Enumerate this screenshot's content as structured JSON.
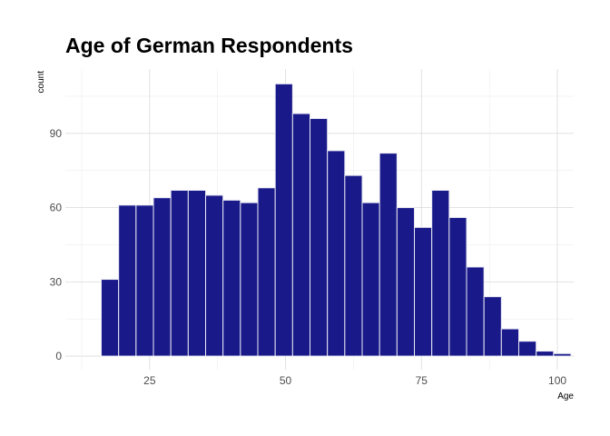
{
  "chart_data": {
    "type": "bar",
    "title": "Age of German Respondents",
    "xlabel": "Age",
    "ylabel": "count",
    "bar_color": "#191989",
    "bin_width": 3.2,
    "bins": [
      {
        "x": 17.7,
        "count": 31
      },
      {
        "x": 20.9,
        "count": 61
      },
      {
        "x": 24.1,
        "count": 61
      },
      {
        "x": 27.3,
        "count": 64
      },
      {
        "x": 30.5,
        "count": 67
      },
      {
        "x": 33.7,
        "count": 67
      },
      {
        "x": 36.9,
        "count": 65
      },
      {
        "x": 40.1,
        "count": 63
      },
      {
        "x": 43.3,
        "count": 62
      },
      {
        "x": 46.5,
        "count": 68
      },
      {
        "x": 49.7,
        "count": 110
      },
      {
        "x": 52.9,
        "count": 98
      },
      {
        "x": 56.1,
        "count": 96
      },
      {
        "x": 59.3,
        "count": 83
      },
      {
        "x": 62.5,
        "count": 73
      },
      {
        "x": 65.7,
        "count": 62
      },
      {
        "x": 68.9,
        "count": 82
      },
      {
        "x": 72.1,
        "count": 60
      },
      {
        "x": 75.3,
        "count": 52
      },
      {
        "x": 78.5,
        "count": 67
      },
      {
        "x": 81.7,
        "count": 56
      },
      {
        "x": 84.9,
        "count": 36
      },
      {
        "x": 88.1,
        "count": 24
      },
      {
        "x": 91.3,
        "count": 11
      },
      {
        "x": 94.5,
        "count": 6
      },
      {
        "x": 97.7,
        "count": 2
      },
      {
        "x": 100.9,
        "count": 1
      }
    ],
    "xlim": [
      9.5,
      103
    ],
    "ylim": [
      -5.5,
      116
    ],
    "x_ticks": [
      25,
      50,
      75,
      100
    ],
    "y_ticks": [
      0,
      30,
      60,
      90
    ],
    "x_minor": [
      12.5,
      37.5,
      62.5,
      87.5
    ],
    "y_minor": [
      15,
      45,
      75,
      105
    ],
    "grid": true
  }
}
